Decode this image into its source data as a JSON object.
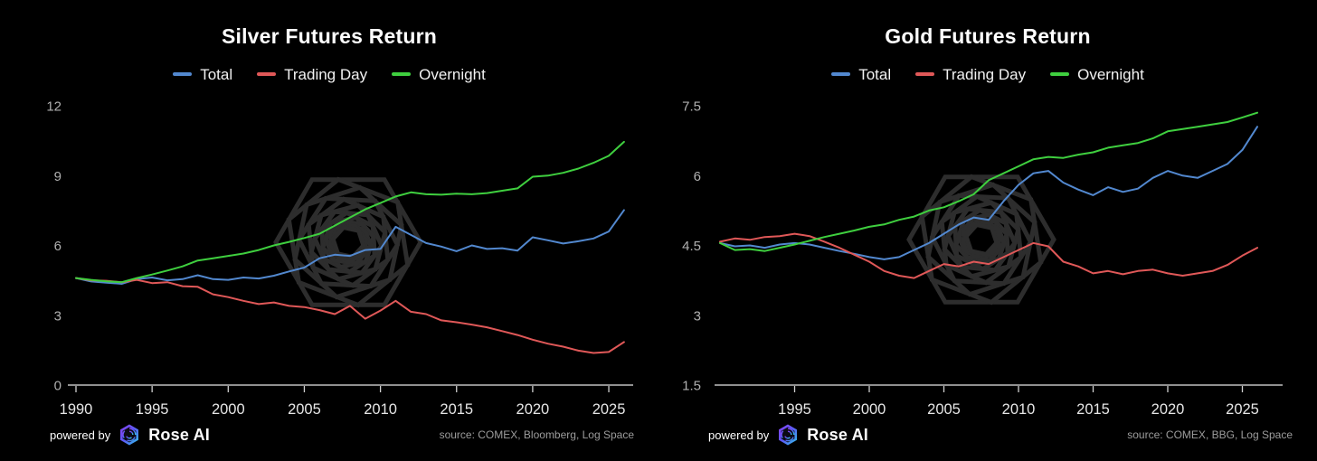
{
  "page": {
    "background": "#000000"
  },
  "branding": {
    "powered_by": "powered by",
    "brand": "Rose AI"
  },
  "colors": {
    "total": "#5288cf",
    "trading_day": "#e05858",
    "overnight": "#3fcf3f",
    "axis": "#e6e6e6",
    "tick": "#cfcfcf",
    "ylabel": "#b0b0b0",
    "xlabel": "#e6e6e6",
    "watermark": "#323232",
    "source": "#9c9c9c"
  },
  "chart_data": [
    {
      "type": "line",
      "title": "Silver Futures Return",
      "source": "source: COMEX, Bloomberg, Log Space",
      "ylim": [
        0,
        12
      ],
      "yticks": [
        0,
        3,
        6,
        9,
        12
      ],
      "ytick_labels": [
        "0",
        "3",
        "6",
        "9",
        "12"
      ],
      "xticks": [
        1990,
        1995,
        2000,
        2005,
        2010,
        2015,
        2020,
        2025
      ],
      "grid": false,
      "legend_position": "top-center",
      "x": [
        1990,
        1991,
        1992,
        1993,
        1994,
        1995,
        1996,
        1997,
        1998,
        1999,
        2000,
        2001,
        2002,
        2003,
        2004,
        2005,
        2006,
        2007,
        2008,
        2009,
        2010,
        2011,
        2012,
        2013,
        2014,
        2015,
        2016,
        2017,
        2018,
        2019,
        2020,
        2021,
        2022,
        2023,
        2024,
        2025,
        2026
      ],
      "series": [
        {
          "name": "Total",
          "color": "#5288cf",
          "values": [
            4.6,
            4.45,
            4.4,
            4.35,
            4.55,
            4.62,
            4.5,
            4.55,
            4.72,
            4.55,
            4.52,
            4.62,
            4.58,
            4.7,
            4.88,
            5.05,
            5.45,
            5.6,
            5.55,
            5.8,
            5.85,
            6.8,
            6.45,
            6.1,
            5.95,
            5.75,
            6.0,
            5.85,
            5.88,
            5.78,
            6.35,
            6.22,
            6.08,
            6.18,
            6.3,
            6.6,
            7.52
          ]
        },
        {
          "name": "Trading Day",
          "color": "#e05858",
          "values": [
            4.6,
            4.5,
            4.48,
            4.42,
            4.52,
            4.38,
            4.42,
            4.25,
            4.22,
            3.9,
            3.78,
            3.62,
            3.48,
            3.55,
            3.4,
            3.35,
            3.22,
            3.05,
            3.4,
            2.85,
            3.2,
            3.62,
            3.15,
            3.05,
            2.78,
            2.7,
            2.6,
            2.48,
            2.32,
            2.15,
            1.95,
            1.78,
            1.65,
            1.48,
            1.38,
            1.42,
            1.85
          ]
        },
        {
          "name": "Overnight",
          "color": "#3fcf3f",
          "values": [
            4.6,
            4.52,
            4.46,
            4.42,
            4.6,
            4.75,
            4.92,
            5.1,
            5.35,
            5.45,
            5.55,
            5.65,
            5.8,
            6.0,
            6.15,
            6.32,
            6.5,
            6.85,
            7.2,
            7.55,
            7.82,
            8.1,
            8.28,
            8.2,
            8.18,
            8.22,
            8.2,
            8.25,
            8.35,
            8.45,
            8.95,
            9.0,
            9.12,
            9.3,
            9.55,
            9.85,
            10.45
          ]
        }
      ]
    },
    {
      "type": "line",
      "title": "Gold Futures Return",
      "source": "source: COMEX, BBG, Log Space",
      "ylim": [
        1.5,
        7.5
      ],
      "yticks": [
        1.5,
        3,
        4.5,
        6,
        7.5
      ],
      "ytick_labels": [
        "1.5",
        "3",
        "4.5",
        "6",
        "7.5"
      ],
      "xticks": [
        1995,
        2000,
        2005,
        2010,
        2015,
        2020,
        2025
      ],
      "grid": false,
      "legend_position": "top-center",
      "x": [
        1990,
        1991,
        1992,
        1993,
        1994,
        1995,
        1996,
        1997,
        1998,
        1999,
        2000,
        2001,
        2002,
        2003,
        2004,
        2005,
        2006,
        2007,
        2008,
        2009,
        2010,
        2011,
        2012,
        2013,
        2014,
        2015,
        2016,
        2017,
        2018,
        2019,
        2020,
        2021,
        2022,
        2023,
        2024,
        2025,
        2026
      ],
      "series": [
        {
          "name": "Total",
          "color": "#5288cf",
          "values": [
            4.55,
            4.48,
            4.5,
            4.45,
            4.52,
            4.55,
            4.52,
            4.45,
            4.38,
            4.32,
            4.25,
            4.2,
            4.25,
            4.4,
            4.55,
            4.75,
            4.95,
            5.1,
            5.05,
            5.45,
            5.8,
            6.05,
            6.1,
            5.85,
            5.7,
            5.58,
            5.75,
            5.65,
            5.72,
            5.95,
            6.1,
            6.0,
            5.95,
            6.1,
            6.25,
            6.55,
            7.05
          ]
        },
        {
          "name": "Trading Day",
          "color": "#e05858",
          "values": [
            4.58,
            4.65,
            4.62,
            4.68,
            4.7,
            4.75,
            4.7,
            4.58,
            4.45,
            4.3,
            4.15,
            3.95,
            3.85,
            3.8,
            3.95,
            4.1,
            4.05,
            4.15,
            4.1,
            4.25,
            4.4,
            4.55,
            4.48,
            4.15,
            4.05,
            3.9,
            3.95,
            3.88,
            3.95,
            3.98,
            3.9,
            3.85,
            3.9,
            3.95,
            4.08,
            4.28,
            4.45
          ]
        },
        {
          "name": "Overnight",
          "color": "#3fcf3f",
          "values": [
            4.55,
            4.4,
            4.42,
            4.38,
            4.45,
            4.52,
            4.6,
            4.68,
            4.75,
            4.82,
            4.9,
            4.95,
            5.05,
            5.12,
            5.25,
            5.32,
            5.45,
            5.6,
            5.9,
            6.05,
            6.2,
            6.35,
            6.4,
            6.38,
            6.45,
            6.5,
            6.6,
            6.65,
            6.7,
            6.8,
            6.95,
            7.0,
            7.05,
            7.1,
            7.15,
            7.25,
            7.35
          ]
        }
      ]
    }
  ]
}
